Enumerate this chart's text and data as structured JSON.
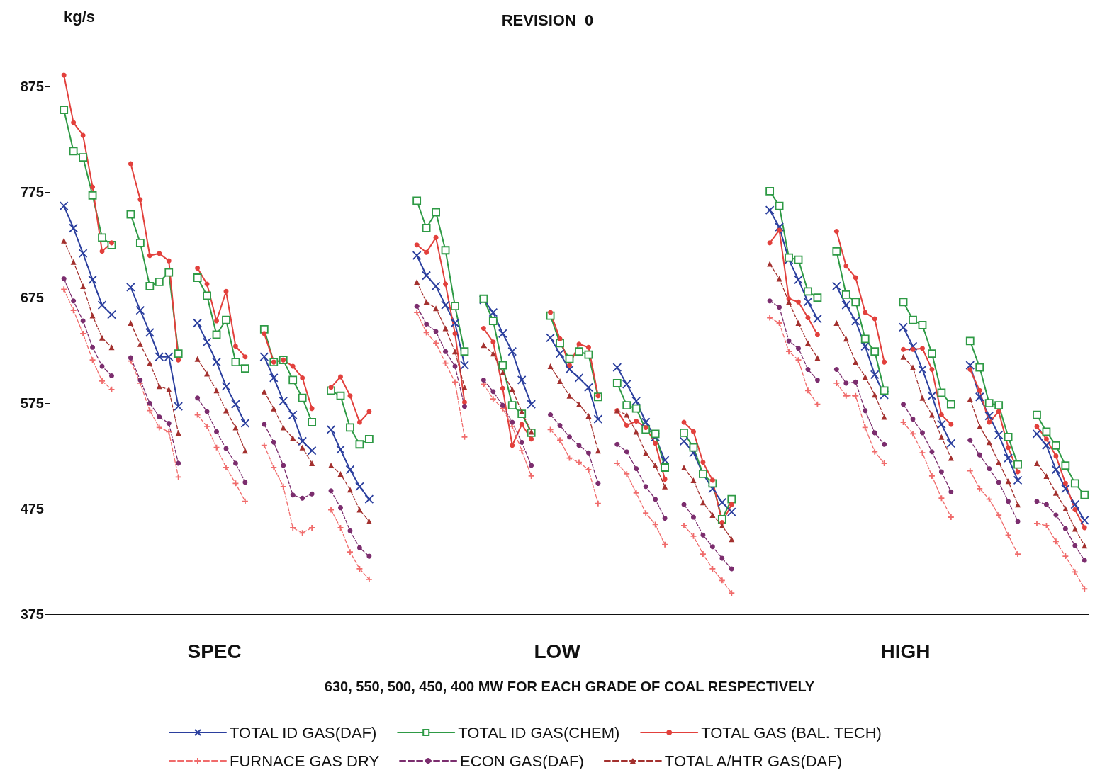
{
  "chart_data": {
    "type": "line",
    "title": "REVISION  0",
    "ylabel": "kg/s",
    "xlabel": "630, 550, 500, 450, 400 MW FOR EACH GRADE OF COAL RESPECTIVELY",
    "annotations": [
      "SPEC",
      "LOW",
      "HIGH"
    ],
    "categories": [
      null,
      null,
      null,
      null,
      null,
      null,
      null,
      null,
      null,
      null,
      null,
      null,
      null,
      null,
      null,
      null,
      null,
      null,
      null,
      null,
      null,
      null,
      null,
      null,
      null,
      null,
      null,
      null,
      null,
      null,
      null,
      null,
      null,
      null,
      null,
      null,
      null,
      null,
      null,
      null,
      null,
      null,
      null,
      null,
      null,
      null,
      null,
      null,
      null,
      null,
      null,
      null,
      null,
      null,
      null,
      null,
      null,
      null,
      null,
      null,
      null,
      null,
      null,
      null,
      null,
      null,
      null,
      null,
      null,
      null,
      null,
      null,
      null,
      null,
      null,
      null,
      null,
      null,
      null,
      null,
      null,
      null,
      null,
      null,
      null,
      null,
      null,
      null,
      null,
      null,
      null,
      null,
      null,
      null,
      null,
      null,
      null,
      null,
      null,
      null,
      null,
      null,
      null,
      null,
      null,
      null,
      null,
      null,
      null
    ],
    "ylim": [
      375,
      925
    ],
    "yticks": [
      375,
      475,
      575,
      675,
      775,
      875
    ],
    "grid": false,
    "tick_labels": "y",
    "legend": "bottom",
    "series": [
      {
        "name": "TOTAL ID GAS(DAF)",
        "color": "#2b3f9e",
        "marker": "cross",
        "line_style": "solid",
        "values": [
          null,
          762,
          741,
          717,
          692,
          668,
          659,
          null,
          685,
          663,
          642,
          619,
          619,
          572,
          null,
          651,
          633,
          614,
          591,
          574,
          556,
          null,
          619,
          599,
          577,
          564,
          539,
          530,
          null,
          550,
          531,
          512,
          496,
          484,
          null,
          null,
          null,
          null,
          715,
          696,
          686,
          668,
          651,
          611,
          null,
          673,
          661,
          641,
          624,
          597,
          574,
          null,
          637,
          622,
          607,
          599,
          590,
          560,
          null,
          609,
          593,
          577,
          557,
          543,
          521,
          null,
          539,
          528,
          508,
          494,
          481,
          472,
          null,
          null,
          null,
          758,
          742,
          711,
          692,
          671,
          655,
          null,
          686,
          668,
          653,
          629,
          602,
          583,
          null,
          647,
          629,
          607,
          582,
          555,
          537,
          null,
          611,
          581,
          563,
          545,
          523,
          502,
          null,
          546,
          535,
          512,
          494,
          479,
          464
        ]
      },
      {
        "name": "TOTAL ID GAS(CHEM)",
        "color": "#2e9a45",
        "marker": "square",
        "line_style": "solid",
        "values": [
          null,
          853,
          814,
          808,
          772,
          732,
          725,
          null,
          754,
          727,
          686,
          690,
          699,
          622,
          null,
          694,
          677,
          640,
          654,
          614,
          608,
          null,
          645,
          614,
          616,
          597,
          580,
          557,
          null,
          587,
          582,
          552,
          536,
          541,
          null,
          null,
          null,
          null,
          767,
          741,
          756,
          720,
          667,
          624,
          null,
          674,
          653,
          611,
          573,
          565,
          547,
          null,
          658,
          632,
          617,
          624,
          621,
          581,
          null,
          594,
          573,
          570,
          550,
          546,
          514,
          null,
          547,
          533,
          508,
          499,
          465,
          484,
          null,
          null,
          null,
          776,
          762,
          713,
          711,
          681,
          675,
          null,
          719,
          678,
          671,
          636,
          624,
          587,
          null,
          671,
          654,
          649,
          622,
          585,
          574,
          null,
          634,
          609,
          575,
          573,
          543,
          517,
          null,
          564,
          548,
          535,
          516,
          499,
          488
        ]
      },
      {
        "name": "TOTAL GAS (BAL. TECH)",
        "color": "#e2403c",
        "marker": "circle",
        "line_style": "solid",
        "values": [
          null,
          886,
          841,
          829,
          780,
          719,
          727,
          null,
          802,
          768,
          715,
          717,
          710,
          616,
          null,
          703,
          688,
          653,
          681,
          629,
          619,
          null,
          641,
          614,
          616,
          610,
          599,
          570,
          null,
          590,
          600,
          582,
          557,
          567,
          null,
          null,
          null,
          null,
          725,
          718,
          732,
          688,
          641,
          576,
          null,
          646,
          633,
          589,
          535,
          555,
          541,
          null,
          661,
          636,
          611,
          631,
          628,
          582,
          null,
          568,
          554,
          558,
          552,
          537,
          503,
          null,
          557,
          548,
          519,
          502,
          462,
          479,
          null,
          null,
          null,
          727,
          739,
          674,
          671,
          656,
          640,
          null,
          738,
          705,
          694,
          661,
          655,
          614,
          null,
          626,
          626,
          627,
          607,
          564,
          555,
          null,
          607,
          587,
          557,
          567,
          533,
          510,
          null,
          553,
          541,
          525,
          499,
          474,
          457
        ]
      },
      {
        "name": "FURNACE GAS DRY",
        "color": "#f06b6b",
        "marker": "plus",
        "line_style": "dashed",
        "values": [
          null,
          683,
          663,
          641,
          616,
          596,
          588,
          null,
          615,
          594,
          568,
          552,
          548,
          505,
          null,
          564,
          553,
          533,
          514,
          499,
          482,
          null,
          535,
          514,
          496,
          457,
          452,
          457,
          null,
          474,
          457,
          434,
          418,
          408,
          null,
          null,
          null,
          null,
          661,
          642,
          632,
          613,
          595,
          543,
          null,
          593,
          579,
          570,
          553,
          530,
          506,
          null,
          550,
          540,
          523,
          519,
          512,
          480,
          null,
          518,
          508,
          490,
          471,
          460,
          441,
          null,
          459,
          449,
          432,
          418,
          407,
          395,
          null,
          null,
          null,
          656,
          651,
          624,
          616,
          587,
          574,
          null,
          594,
          582,
          582,
          552,
          529,
          518,
          null,
          557,
          546,
          528,
          506,
          485,
          467,
          null,
          511,
          494,
          484,
          469,
          450,
          432,
          null,
          461,
          459,
          444,
          430,
          415,
          399
        ]
      },
      {
        "name": "ECON GAS(DAF)",
        "color": "#7b2d6e",
        "marker": "circle",
        "line_style": "dashed",
        "values": [
          null,
          693,
          672,
          653,
          628,
          610,
          601,
          null,
          618,
          597,
          575,
          562,
          556,
          518,
          null,
          580,
          567,
          548,
          532,
          518,
          500,
          null,
          555,
          538,
          516,
          488,
          485,
          489,
          null,
          492,
          476,
          454,
          438,
          430,
          null,
          null,
          null,
          null,
          667,
          650,
          643,
          624,
          610,
          572,
          null,
          597,
          586,
          573,
          557,
          538,
          516,
          null,
          564,
          554,
          543,
          535,
          528,
          499,
          null,
          536,
          529,
          513,
          496,
          484,
          466,
          null,
          479,
          467,
          450,
          439,
          428,
          418,
          null,
          null,
          null,
          672,
          666,
          634,
          627,
          607,
          597,
          null,
          607,
          594,
          595,
          568,
          547,
          536,
          null,
          574,
          560,
          547,
          529,
          510,
          491,
          null,
          540,
          526,
          513,
          500,
          482,
          463,
          null,
          482,
          479,
          469,
          456,
          440,
          426
        ]
      },
      {
        "name": "TOTAL A/HTR GAS(DAF)",
        "color": "#a3302e",
        "marker": "triangle",
        "line_style": "dashed",
        "values": [
          null,
          729,
          709,
          686,
          658,
          637,
          628,
          null,
          651,
          631,
          613,
          591,
          588,
          547,
          null,
          617,
          603,
          587,
          568,
          552,
          530,
          null,
          586,
          570,
          552,
          542,
          533,
          518,
          null,
          516,
          508,
          493,
          474,
          463,
          null,
          null,
          null,
          null,
          690,
          671,
          665,
          646,
          624,
          590,
          null,
          630,
          622,
          604,
          588,
          567,
          548,
          null,
          610,
          596,
          582,
          574,
          563,
          530,
          null,
          568,
          564,
          548,
          528,
          516,
          496,
          null,
          514,
          502,
          481,
          469,
          459,
          446,
          null,
          null,
          null,
          707,
          693,
          671,
          651,
          632,
          618,
          null,
          651,
          636,
          614,
          600,
          583,
          562,
          null,
          619,
          609,
          580,
          564,
          543,
          523,
          null,
          579,
          553,
          538,
          519,
          501,
          479,
          null,
          518,
          506,
          490,
          475,
          456,
          440
        ]
      }
    ]
  }
}
